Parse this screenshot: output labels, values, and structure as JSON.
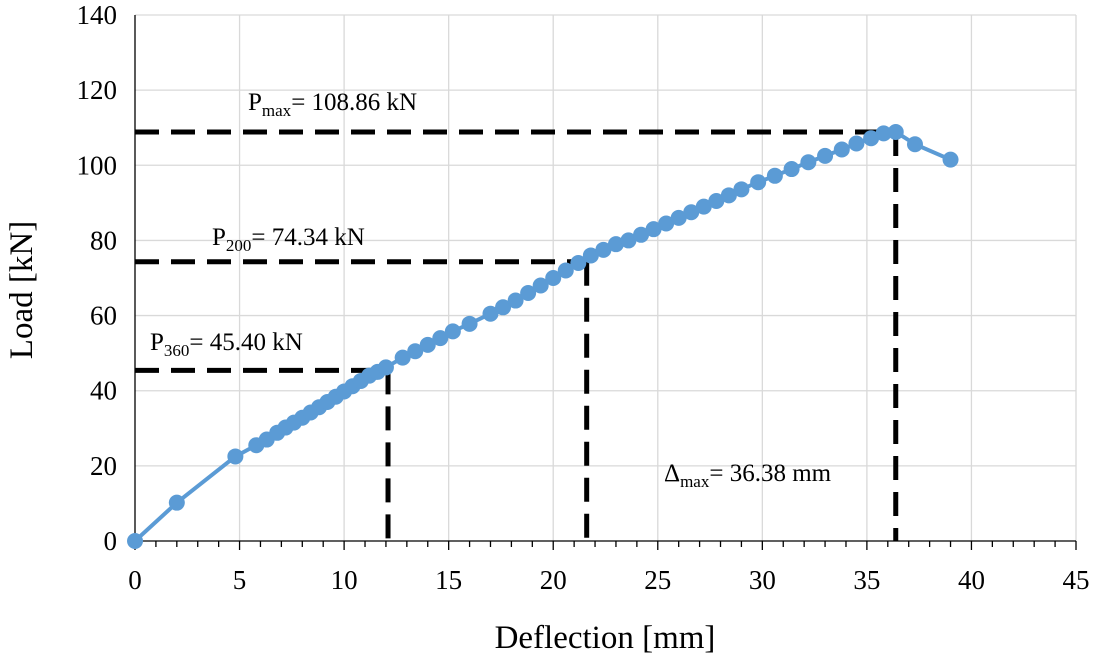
{
  "chart_data": {
    "type": "scatter",
    "xlabel": "Deflection [mm]",
    "ylabel": "Load [kN]",
    "xlim": [
      0,
      45
    ],
    "ylim": [
      0,
      140
    ],
    "xticks": [
      0,
      5,
      10,
      15,
      20,
      25,
      30,
      35,
      40,
      45
    ],
    "yticks": [
      0,
      20,
      40,
      60,
      80,
      100,
      120,
      140
    ],
    "grid": true,
    "series_color": "#5b9bd5",
    "reference_color": "#000000",
    "series": [
      {
        "x": [
          0,
          2.0,
          4.8,
          5.8,
          6.3,
          6.8,
          7.2,
          7.6,
          8.0,
          8.4,
          8.8,
          9.2,
          9.6,
          10.0,
          10.4,
          10.8,
          11.2,
          11.6,
          12.0,
          12.8,
          13.4,
          14.0,
          14.6,
          15.2,
          16.0,
          17.0,
          17.6,
          18.2,
          18.8,
          19.4,
          20.0,
          20.6,
          21.2,
          21.8,
          22.4,
          23.0,
          23.6,
          24.2,
          24.8,
          25.4,
          26.0,
          26.6,
          27.2,
          27.8,
          28.4,
          29.0,
          29.8,
          30.6,
          31.4,
          32.2,
          33.0,
          33.8,
          34.5,
          35.2,
          35.8,
          36.38,
          37.3,
          39.0
        ],
        "y": [
          0,
          10.2,
          22.5,
          25.5,
          27.0,
          28.8,
          30.2,
          31.5,
          32.8,
          34.2,
          35.6,
          37.0,
          38.4,
          39.8,
          41.2,
          42.6,
          44.0,
          45.0,
          46.2,
          48.8,
          50.5,
          52.2,
          54.0,
          55.8,
          57.8,
          60.5,
          62.2,
          64.0,
          66.0,
          68.0,
          70.0,
          72.0,
          74.0,
          76.0,
          77.5,
          79.0,
          80.0,
          81.5,
          83.0,
          84.5,
          86.0,
          87.5,
          89.0,
          90.5,
          92.0,
          93.6,
          95.5,
          97.2,
          99.0,
          100.8,
          102.5,
          104.2,
          105.8,
          107.2,
          108.5,
          108.86,
          105.6,
          101.5
        ]
      }
    ],
    "reference_lines": [
      {
        "label_main": "P",
        "label_sub": "max",
        "label_value": "= 108.86 kN",
        "x": 36.38,
        "y": 108.86
      },
      {
        "label_main": "P",
        "label_sub": "200",
        "label_value": "= 74.34 kN",
        "x": 21.6,
        "y": 74.34
      },
      {
        "label_main": "P",
        "label_sub": "360",
        "label_value": "= 45.40 kN",
        "x": 12.1,
        "y": 45.4
      }
    ],
    "deflection_annotation": {
      "label_main": "Δ",
      "label_sub": "max",
      "label_value": "= 36.38 mm"
    }
  }
}
